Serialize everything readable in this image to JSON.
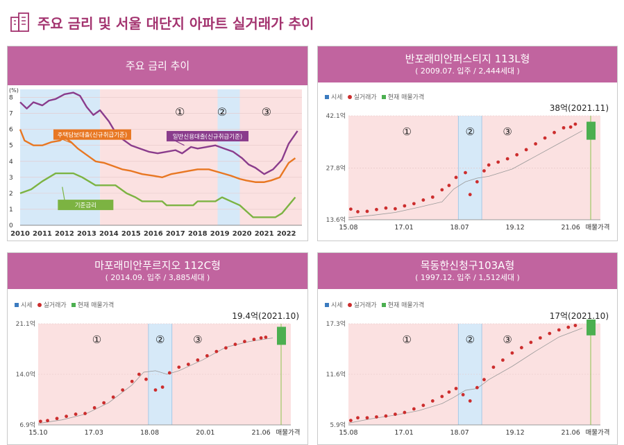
{
  "page": {
    "title": "주요 금리 및 서울 대단지 아파트 실거래가 추이",
    "icon": "building-icon",
    "accent": "#c1649f",
    "title_color": "#a3336f"
  },
  "legend": {
    "market": "시세",
    "actual": "실거래가",
    "current": "현재 매물가격"
  },
  "colors": {
    "band_blue": "#d6e9f8",
    "band_pink": "#fbe1e1",
    "orange": "#e87722",
    "purple": "#8a3c8c",
    "green": "#7cb342",
    "red_dot": "#cc2d2d",
    "green_bar": "#4caf50"
  },
  "chart_data": [
    {
      "id": "rates",
      "type": "line",
      "title": "주요 금리 추이",
      "ylabel": "(%)",
      "ylim": [
        0,
        8.5
      ],
      "yticks": [
        0,
        1,
        2,
        3,
        4,
        5,
        6,
        7,
        8
      ],
      "x_labels": [
        "2010",
        "2011",
        "2012",
        "2013",
        "2014",
        "2015",
        "2016",
        "2017",
        "2018",
        "2019",
        "2020",
        "2021",
        "2022"
      ],
      "xlim": [
        2010,
        2022.7
      ],
      "periods": [
        "①",
        "②",
        "③"
      ],
      "series": [
        {
          "name": "주택담보대출(신규취급기준)",
          "x": [
            2010,
            2010.2,
            2010.6,
            2011,
            2011.4,
            2011.8,
            2012,
            2012.3,
            2012.6,
            2013,
            2013.4,
            2013.8,
            2014.2,
            2014.6,
            2015,
            2015.5,
            2016,
            2016.4,
            2016.8,
            2017.2,
            2017.6,
            2018,
            2018.5,
            2019,
            2019.5,
            2019.9,
            2020.2,
            2020.6,
            2021,
            2021.3,
            2021.7,
            2022.1,
            2022.4
          ],
          "y": [
            6.0,
            5.3,
            5.0,
            5.0,
            5.2,
            5.3,
            5.5,
            5.2,
            4.8,
            4.4,
            4.0,
            3.9,
            3.7,
            3.5,
            3.4,
            3.2,
            3.1,
            3.0,
            3.2,
            3.3,
            3.4,
            3.5,
            3.5,
            3.3,
            3.1,
            2.9,
            2.8,
            2.7,
            2.7,
            2.8,
            3.0,
            3.9,
            4.2
          ]
        },
        {
          "name": "일반신용대출(신규취급기준)",
          "x": [
            2010,
            2010.3,
            2010.6,
            2011,
            2011.3,
            2011.6,
            2012,
            2012.4,
            2012.7,
            2013,
            2013.3,
            2013.6,
            2014,
            2014.3,
            2014.6,
            2015,
            2015.4,
            2015.8,
            2016.2,
            2016.6,
            2017,
            2017.3,
            2017.7,
            2018,
            2018.4,
            2018.8,
            2019.2,
            2019.6,
            2020,
            2020.3,
            2020.6,
            2021,
            2021.4,
            2021.8,
            2022.1,
            2022.5
          ],
          "y": [
            7.7,
            7.3,
            7.7,
            7.5,
            7.8,
            7.9,
            8.2,
            8.3,
            8.1,
            7.4,
            6.9,
            7.2,
            6.5,
            5.8,
            5.4,
            5.0,
            4.8,
            4.6,
            4.5,
            4.6,
            4.7,
            4.5,
            4.9,
            4.8,
            4.9,
            5.0,
            4.8,
            4.6,
            4.2,
            3.8,
            3.6,
            3.2,
            3.5,
            4.1,
            5.1,
            5.9
          ]
        },
        {
          "name": "기준금리",
          "x": [
            2010,
            2010.5,
            2011,
            2011.3,
            2011.6,
            2012.4,
            2012.8,
            2013.1,
            2013.4,
            2014.3,
            2014.8,
            2015.2,
            2015.5,
            2016.4,
            2016.6,
            2017.8,
            2018,
            2018.8,
            2019.1,
            2019.5,
            2019.9,
            2020.3,
            2020.5,
            2021.5,
            2021.8,
            2022.1,
            2022.4
          ],
          "y": [
            2.0,
            2.25,
            2.75,
            3.0,
            3.25,
            3.25,
            3.0,
            2.75,
            2.5,
            2.5,
            2.0,
            1.75,
            1.5,
            1.5,
            1.25,
            1.25,
            1.5,
            1.5,
            1.75,
            1.5,
            1.25,
            0.75,
            0.5,
            0.5,
            0.75,
            1.25,
            1.75
          ]
        }
      ]
    },
    {
      "id": "banpo",
      "type": "scatter",
      "title": "반포래미안퍼스티지 113L형",
      "subtitle": "( 2009.07. 입주 / 2,444세대 )",
      "current_price": "38억(2021.11)",
      "current_value": 38,
      "ylim": [
        13.6,
        42.1
      ],
      "yticks": [
        13.6,
        27.8,
        42.1
      ],
      "ytick_labels": [
        "13.6억",
        "27.8억",
        "42.1억"
      ],
      "x_labels": [
        "15.08",
        "17.01",
        "18.07",
        "19.12",
        "21.06",
        "매물가격"
      ],
      "periods": [
        "①",
        "②",
        "③"
      ],
      "market": [
        [
          0,
          14.2
        ],
        [
          0.1,
          14.8
        ],
        [
          0.2,
          15.6
        ],
        [
          0.3,
          17.0
        ],
        [
          0.4,
          18.5
        ],
        [
          0.45,
          22.0
        ],
        [
          0.5,
          24.0
        ],
        [
          0.55,
          25.0
        ],
        [
          0.6,
          25.5
        ],
        [
          0.7,
          27.5
        ],
        [
          0.8,
          31.0
        ],
        [
          0.9,
          34.5
        ],
        [
          1.0,
          38.0
        ]
      ],
      "actual": [
        [
          0.01,
          16.5
        ],
        [
          0.04,
          15.8
        ],
        [
          0.08,
          15.9
        ],
        [
          0.12,
          16.4
        ],
        [
          0.16,
          16.8
        ],
        [
          0.2,
          16.6
        ],
        [
          0.24,
          17.4
        ],
        [
          0.28,
          18.0
        ],
        [
          0.32,
          19.0
        ],
        [
          0.36,
          19.8
        ],
        [
          0.4,
          21.8
        ],
        [
          0.43,
          23.0
        ],
        [
          0.46,
          25.2
        ],
        [
          0.5,
          26.5
        ],
        [
          0.52,
          20.5
        ],
        [
          0.55,
          24.0
        ],
        [
          0.58,
          27.0
        ],
        [
          0.6,
          28.6
        ],
        [
          0.64,
          29.4
        ],
        [
          0.68,
          30.3
        ],
        [
          0.72,
          31.4
        ],
        [
          0.76,
          32.8
        ],
        [
          0.8,
          34.4
        ],
        [
          0.84,
          36.0
        ],
        [
          0.88,
          37.5
        ],
        [
          0.92,
          38.8
        ],
        [
          0.95,
          39.0
        ],
        [
          0.97,
          39.8
        ]
      ]
    },
    {
      "id": "mapo",
      "type": "scatter",
      "title": "마포래미안푸르지오 112C형",
      "subtitle": "( 2014.09. 입주 / 3,885세대 )",
      "current_price": "19.4억(2021.10)",
      "current_value": 19.4,
      "ylim": [
        6.9,
        21.1
      ],
      "yticks": [
        6.9,
        14.0,
        21.1
      ],
      "ytick_labels": [
        "6.9억",
        "14.0억",
        "21.1억"
      ],
      "x_labels": [
        "15.10",
        "17.03",
        "18.08",
        "20.01",
        "21.06",
        "매물가격"
      ],
      "periods": [
        "①",
        "②",
        "③"
      ],
      "market": [
        [
          0,
          7.1
        ],
        [
          0.1,
          7.6
        ],
        [
          0.2,
          8.4
        ],
        [
          0.3,
          10.0
        ],
        [
          0.4,
          12.5
        ],
        [
          0.45,
          14.3
        ],
        [
          0.5,
          14.5
        ],
        [
          0.55,
          14.0
        ],
        [
          0.6,
          14.5
        ],
        [
          0.7,
          16.0
        ],
        [
          0.8,
          17.8
        ],
        [
          0.9,
          18.6
        ],
        [
          1.0,
          19.1
        ]
      ],
      "actual": [
        [
          0.01,
          7.4
        ],
        [
          0.04,
          7.5
        ],
        [
          0.08,
          7.8
        ],
        [
          0.12,
          8.1
        ],
        [
          0.16,
          8.4
        ],
        [
          0.2,
          8.5
        ],
        [
          0.24,
          9.3
        ],
        [
          0.28,
          10.0
        ],
        [
          0.32,
          10.8
        ],
        [
          0.36,
          11.8
        ],
        [
          0.4,
          13.0
        ],
        [
          0.43,
          14.0
        ],
        [
          0.46,
          13.3
        ],
        [
          0.5,
          11.8
        ],
        [
          0.53,
          12.2
        ],
        [
          0.56,
          14.2
        ],
        [
          0.6,
          15.0
        ],
        [
          0.64,
          15.4
        ],
        [
          0.68,
          16.0
        ],
        [
          0.72,
          16.6
        ],
        [
          0.76,
          17.2
        ],
        [
          0.8,
          17.7
        ],
        [
          0.84,
          18.2
        ],
        [
          0.88,
          18.6
        ],
        [
          0.92,
          18.9
        ],
        [
          0.95,
          19.1
        ],
        [
          0.97,
          19.2
        ]
      ]
    },
    {
      "id": "mokdong",
      "type": "scatter",
      "title": "목동한신청구103A형",
      "subtitle": "( 1997.12. 입주 / 1,512세대 )",
      "current_price": "17억(2021.10)",
      "current_value": 17,
      "ylim": [
        5.9,
        17.3
      ],
      "yticks": [
        5.9,
        11.6,
        17.3
      ],
      "ytick_labels": [
        "5.9억",
        "11.6억",
        "17.3억"
      ],
      "x_labels": [
        "15.08",
        "17.01",
        "18.07",
        "19.12",
        "21.06",
        "매물가격"
      ],
      "periods": [
        "①",
        "②",
        "③"
      ],
      "market": [
        [
          0,
          6.1
        ],
        [
          0.1,
          6.6
        ],
        [
          0.2,
          7.0
        ],
        [
          0.3,
          7.5
        ],
        [
          0.4,
          8.3
        ],
        [
          0.45,
          9.0
        ],
        [
          0.5,
          9.8
        ],
        [
          0.55,
          10.0
        ],
        [
          0.6,
          11.0
        ],
        [
          0.7,
          12.5
        ],
        [
          0.8,
          14.2
        ],
        [
          0.9,
          15.8
        ],
        [
          1.0,
          16.8
        ]
      ],
      "actual": [
        [
          0.01,
          6.4
        ],
        [
          0.04,
          6.7
        ],
        [
          0.08,
          6.7
        ],
        [
          0.12,
          6.8
        ],
        [
          0.16,
          6.9
        ],
        [
          0.2,
          7.1
        ],
        [
          0.24,
          7.3
        ],
        [
          0.28,
          7.7
        ],
        [
          0.32,
          8.1
        ],
        [
          0.36,
          8.6
        ],
        [
          0.4,
          9.1
        ],
        [
          0.43,
          9.6
        ],
        [
          0.46,
          10.0
        ],
        [
          0.49,
          9.3
        ],
        [
          0.52,
          8.6
        ],
        [
          0.55,
          10.1
        ],
        [
          0.58,
          11.0
        ],
        [
          0.62,
          12.4
        ],
        [
          0.66,
          13.2
        ],
        [
          0.7,
          14.0
        ],
        [
          0.74,
          14.6
        ],
        [
          0.78,
          15.2
        ],
        [
          0.82,
          15.7
        ],
        [
          0.86,
          16.2
        ],
        [
          0.9,
          16.6
        ],
        [
          0.94,
          16.9
        ],
        [
          0.97,
          17.1
        ]
      ]
    }
  ]
}
